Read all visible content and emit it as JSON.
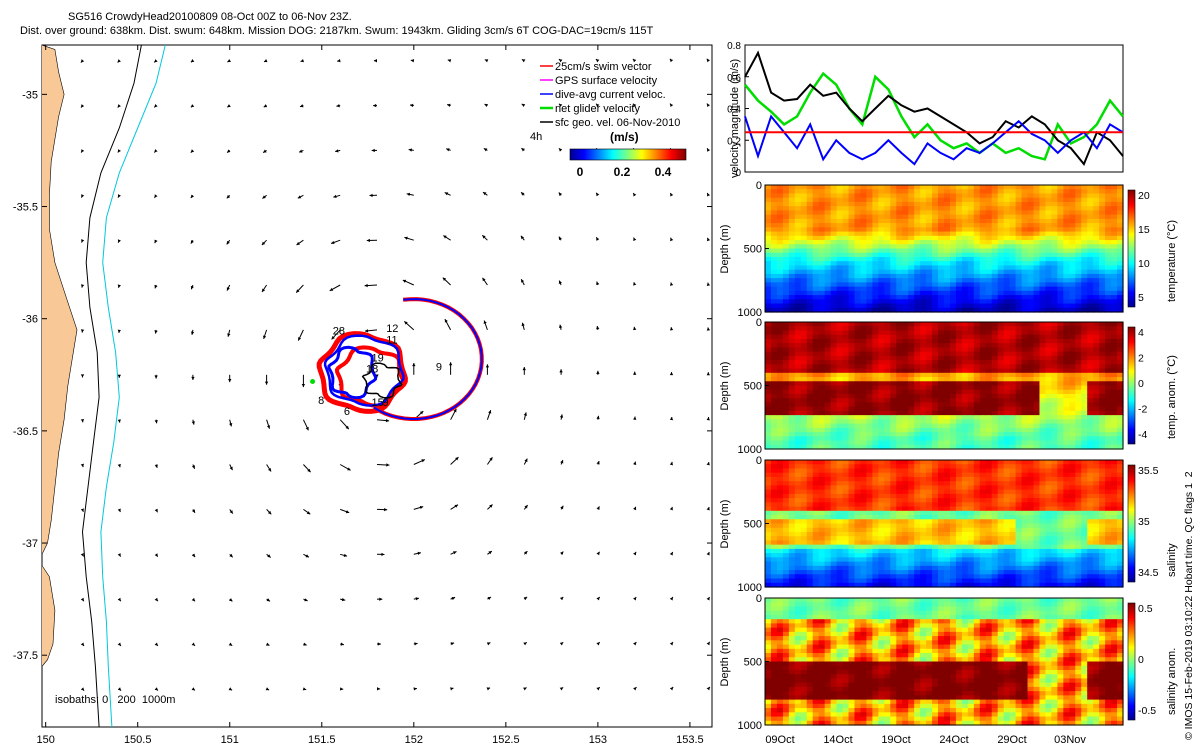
{
  "header": {
    "title": "SG516 CrowdyHead20100809 08-Oct 00Z to 06-Nov 23Z.",
    "subtitle": "Dist. over ground: 638km. Dist. swum: 648km. Mission DOG: 2187km. Swum: 1943km. Gliding 3cm/s 6T COG-DAC=19cm/s 115T"
  },
  "colors": {
    "land": "#f8c896",
    "isobath_200": "#000000",
    "isobath_1000": "#00c8dc",
    "swim": "#ff0000",
    "gps": "#ff00ff",
    "dac": "#0000ff",
    "net": "#00dd00",
    "sfc_geo": "#000000"
  },
  "chart_data": [
    {
      "type": "scatter",
      "name": "map",
      "x_ticks": [
        "150",
        "150.5",
        "151",
        "151.5",
        "152",
        "152.5",
        "153",
        "153.5"
      ],
      "y_ticks": [
        "-35",
        "-35.5",
        "-36",
        "-36.5",
        "-37",
        "-37.5"
      ],
      "xlim": [
        149.98,
        153.62
      ],
      "ylim": [
        -37.82,
        -34.78
      ],
      "legend": {
        "placement": "top-right",
        "entries": [
          "25cm/s swim vector",
          "GPS surface velocity",
          "dive-avg current veloc.",
          "net glider velocity",
          "sfc geo. vel. 06-Nov-2010"
        ],
        "interval_label": "4h"
      },
      "colorbar": {
        "label": "(m/s)",
        "ticks": [
          "0",
          "0.2",
          "0.4"
        ],
        "range": [
          0,
          0.5
        ],
        "colormap": "jet"
      },
      "isobath_note": "isobaths: 0   200  1000m",
      "day_labels": [
        {
          "text": "28",
          "lon": 151.56,
          "lat": -36.07
        },
        {
          "text": "12",
          "lon": 151.85,
          "lat": -36.06
        },
        {
          "text": "11",
          "lon": 151.85,
          "lat": -36.11
        },
        {
          "text": "19",
          "lon": 151.77,
          "lat": -36.19
        },
        {
          "text": "18",
          "lon": 151.74,
          "lat": -36.24
        },
        {
          "text": "9",
          "lon": 152.12,
          "lat": -36.23
        },
        {
          "text": "8",
          "lon": 151.48,
          "lat": -36.38
        },
        {
          "text": "15",
          "lon": 151.77,
          "lat": -36.39
        },
        {
          "text": "9",
          "lon": 151.83,
          "lat": -36.39
        },
        {
          "text": "6",
          "lon": 151.62,
          "lat": -36.43
        }
      ],
      "coastline": [
        {
          "lon": 149.98,
          "lat": -34.78
        },
        {
          "lon": 150.05,
          "lat": -34.8
        },
        {
          "lon": 150.07,
          "lat": -34.9
        },
        {
          "lon": 150.1,
          "lat": -35.0
        },
        {
          "lon": 150.07,
          "lat": -35.1
        },
        {
          "lon": 150.05,
          "lat": -35.2
        },
        {
          "lon": 150.03,
          "lat": -35.3
        },
        {
          "lon": 150.02,
          "lat": -35.45
        },
        {
          "lon": 150.02,
          "lat": -35.6
        },
        {
          "lon": 150.05,
          "lat": -35.75
        },
        {
          "lon": 150.11,
          "lat": -35.9
        },
        {
          "lon": 150.17,
          "lat": -36.05
        },
        {
          "lon": 150.15,
          "lat": -36.15
        },
        {
          "lon": 150.12,
          "lat": -36.3
        },
        {
          "lon": 150.1,
          "lat": -36.45
        },
        {
          "lon": 150.07,
          "lat": -36.6
        },
        {
          "lon": 150.05,
          "lat": -36.75
        },
        {
          "lon": 150.03,
          "lat": -36.9
        },
        {
          "lon": 150.01,
          "lat": -37.0
        },
        {
          "lon": 149.98,
          "lat": -37.05
        }
      ],
      "coastline_south": [
        {
          "lon": 149.98,
          "lat": -37.1
        },
        {
          "lon": 150.02,
          "lat": -37.15
        },
        {
          "lon": 150.05,
          "lat": -37.3
        },
        {
          "lon": 150.04,
          "lat": -37.45
        },
        {
          "lon": 150.01,
          "lat": -37.52
        },
        {
          "lon": 149.98,
          "lat": -37.55
        }
      ],
      "isobath_200": [
        {
          "lon": 150.52,
          "lat": -34.78
        },
        {
          "lon": 150.48,
          "lat": -34.95
        },
        {
          "lon": 150.4,
          "lat": -35.15
        },
        {
          "lon": 150.3,
          "lat": -35.35
        },
        {
          "lon": 150.24,
          "lat": -35.55
        },
        {
          "lon": 150.22,
          "lat": -35.75
        },
        {
          "lon": 150.24,
          "lat": -35.95
        },
        {
          "lon": 150.28,
          "lat": -36.15
        },
        {
          "lon": 150.29,
          "lat": -36.35
        },
        {
          "lon": 150.26,
          "lat": -36.55
        },
        {
          "lon": 150.23,
          "lat": -36.75
        },
        {
          "lon": 150.2,
          "lat": -36.95
        },
        {
          "lon": 150.22,
          "lat": -37.15
        },
        {
          "lon": 150.25,
          "lat": -37.35
        },
        {
          "lon": 150.27,
          "lat": -37.55
        },
        {
          "lon": 150.29,
          "lat": -37.82
        }
      ],
      "isobath_1000": [
        {
          "lon": 150.65,
          "lat": -34.78
        },
        {
          "lon": 150.6,
          "lat": -34.95
        },
        {
          "lon": 150.5,
          "lat": -35.15
        },
        {
          "lon": 150.4,
          "lat": -35.35
        },
        {
          "lon": 150.33,
          "lat": -35.55
        },
        {
          "lon": 150.31,
          "lat": -35.75
        },
        {
          "lon": 150.34,
          "lat": -35.95
        },
        {
          "lon": 150.38,
          "lat": -36.15
        },
        {
          "lon": 150.4,
          "lat": -36.35
        },
        {
          "lon": 150.37,
          "lat": -36.55
        },
        {
          "lon": 150.33,
          "lat": -36.75
        },
        {
          "lon": 150.3,
          "lat": -36.95
        },
        {
          "lon": 150.31,
          "lat": -37.15
        },
        {
          "lon": 150.33,
          "lat": -37.35
        },
        {
          "lon": 150.34,
          "lat": -37.55
        },
        {
          "lon": 150.36,
          "lat": -37.82
        }
      ],
      "eddy": {
        "center_lon": 151.82,
        "center_lat": -36.25,
        "scale_deg": 0.75,
        "decay": 1.3
      }
    },
    {
      "type": "line",
      "name": "velocity",
      "ylabel": "velocity magnitude (m/s)",
      "ylim": [
        0,
        0.8
      ],
      "y_ticks": [
        0,
        0.2,
        0.4,
        0.6,
        0.8
      ],
      "x": [
        0,
        1,
        2,
        3,
        4,
        5,
        6,
        7,
        8,
        9,
        10,
        11,
        12,
        13,
        14,
        15,
        16,
        17,
        18,
        19,
        20,
        21,
        22,
        23,
        24,
        25,
        26,
        27,
        28,
        29
      ],
      "series": [
        {
          "color": "#00dd00",
          "values": [
            0.55,
            0.45,
            0.38,
            0.3,
            0.35,
            0.5,
            0.62,
            0.55,
            0.4,
            0.3,
            0.6,
            0.52,
            0.35,
            0.22,
            0.3,
            0.2,
            0.15,
            0.18,
            0.12,
            0.18,
            0.12,
            0.15,
            0.1,
            0.08,
            0.3,
            0.18,
            0.22,
            0.3,
            0.45,
            0.35
          ]
        },
        {
          "color": "#000000",
          "values": [
            0.6,
            0.75,
            0.5,
            0.45,
            0.46,
            0.55,
            0.48,
            0.5,
            0.4,
            0.32,
            0.4,
            0.48,
            0.42,
            0.38,
            0.4,
            0.35,
            0.3,
            0.25,
            0.18,
            0.22,
            0.32,
            0.28,
            0.35,
            0.3,
            0.2,
            0.15,
            0.05,
            0.25,
            0.2,
            0.1
          ]
        },
        {
          "color": "#0000ff",
          "values": [
            0.35,
            0.1,
            0.35,
            0.25,
            0.15,
            0.3,
            0.08,
            0.2,
            0.12,
            0.08,
            0.12,
            0.2,
            0.12,
            0.05,
            0.18,
            0.12,
            0.08,
            0.15,
            0.12,
            0.18,
            0.25,
            0.32,
            0.24,
            0.2,
            0.12,
            0.2,
            0.25,
            0.15,
            0.3,
            0.25
          ]
        },
        {
          "color": "#ff0000",
          "values": [
            0.25,
            0.25,
            0.25,
            0.25,
            0.25,
            0.25,
            0.25,
            0.25,
            0.25,
            0.25,
            0.25,
            0.25,
            0.25,
            0.25,
            0.25,
            0.25,
            0.25,
            0.25,
            0.25,
            0.25,
            0.25,
            0.25,
            0.25,
            0.25,
            0.25,
            0.25,
            0.25,
            0.25,
            0.25,
            0.25
          ]
        }
      ]
    },
    {
      "type": "heatmap",
      "name": "temperature",
      "ylabel": "Depth (m)",
      "yticks": [
        "0",
        "500",
        "1000"
      ],
      "cbar_label": "temperature (°C)",
      "cbar_ticks": [
        "20",
        "15",
        "10",
        "5"
      ],
      "range": [
        4,
        21
      ]
    },
    {
      "type": "heatmap",
      "name": "temp_anom",
      "ylabel": "Depth (m)",
      "yticks": [
        "0",
        "500",
        "1000"
      ],
      "cbar_label": "temp. anom. (°C)",
      "cbar_ticks": [
        "4",
        "2",
        "0",
        "-2",
        "-4"
      ],
      "range": [
        -4,
        4
      ]
    },
    {
      "type": "heatmap",
      "name": "salinity",
      "ylabel": "Depth (m)",
      "yticks": [
        "0",
        "500",
        "1000"
      ],
      "cbar_label": "salinity",
      "cbar_ticks": [
        "35.5",
        "35",
        "34.5"
      ],
      "range": [
        34.3,
        35.8
      ]
    },
    {
      "type": "heatmap",
      "name": "salinity_anom",
      "ylabel": "Depth (m)",
      "yticks": [
        "0",
        "500",
        "1000"
      ],
      "cbar_label": "salinity anom.",
      "cbar_ticks": [
        "0.5",
        "0",
        "-0.5"
      ],
      "range": [
        -0.5,
        0.5
      ],
      "xticks": [
        "09Oct",
        "14Oct",
        "19Oct",
        "24Oct",
        "29Oct",
        "03Nov"
      ]
    }
  ],
  "footer": {
    "credit": "© IMOS 15-Feb-2019 03:10:22 Hobart time. QC flags 1  2"
  }
}
